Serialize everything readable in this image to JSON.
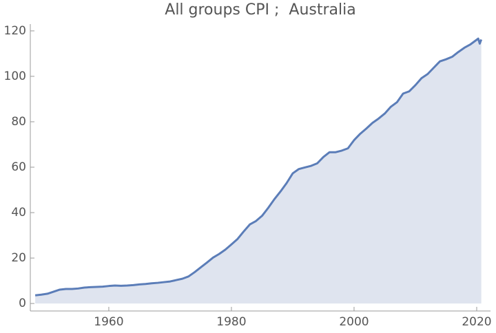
{
  "chart_data": {
    "type": "area",
    "title": "All groups CPI ;  Australia",
    "x": [
      1948,
      1949,
      1950,
      1951,
      1952,
      1953,
      1954,
      1955,
      1956,
      1957,
      1958,
      1959,
      1960,
      1961,
      1962,
      1963,
      1964,
      1965,
      1966,
      1967,
      1968,
      1969,
      1970,
      1971,
      1972,
      1973,
      1974,
      1975,
      1976,
      1977,
      1978,
      1979,
      1980,
      1981,
      1982,
      1983,
      1984,
      1985,
      1986,
      1987,
      1988,
      1989,
      1990,
      1991,
      1992,
      1993,
      1994,
      1995,
      1996,
      1997,
      1998,
      1999,
      2000,
      2001,
      2002,
      2003,
      2004,
      2005,
      2006,
      2007,
      2008,
      2009,
      2010,
      2011,
      2012,
      2013,
      2014,
      2015,
      2016,
      2017,
      2018,
      2019,
      2020.25,
      2020.5,
      2020.75
    ],
    "values": [
      3.6,
      3.9,
      4.3,
      5.2,
      6.1,
      6.4,
      6.4,
      6.6,
      7.0,
      7.2,
      7.3,
      7.4,
      7.7,
      7.9,
      7.8,
      7.9,
      8.1,
      8.4,
      8.6,
      8.9,
      9.1,
      9.4,
      9.7,
      10.3,
      10.9,
      11.9,
      13.8,
      15.9,
      18.0,
      20.2,
      21.8,
      23.7,
      26.0,
      28.4,
      31.7,
      34.8,
      36.3,
      38.6,
      42.1,
      45.9,
      49.3,
      53.0,
      57.3,
      59.2,
      59.9,
      60.6,
      61.7,
      64.5,
      66.6,
      66.6,
      67.3,
      68.3,
      71.9,
      74.7,
      77.0,
      79.5,
      81.4,
      83.6,
      86.6,
      88.6,
      92.4,
      93.4,
      96.1,
      99.2,
      101.0,
      103.8,
      106.6,
      107.5,
      108.6,
      110.7,
      112.6,
      114.1,
      116.6,
      114.4,
      116.2
    ],
    "color": "#5b7db8",
    "fill_color": "#dfe4ef",
    "xlim": [
      1947.2,
      2022.25
    ],
    "ylim": [
      -3.3,
      123
    ],
    "xticks": [
      1960,
      1980,
      2000,
      2020
    ],
    "yticks": [
      0,
      20,
      40,
      60,
      80,
      100,
      120
    ]
  }
}
